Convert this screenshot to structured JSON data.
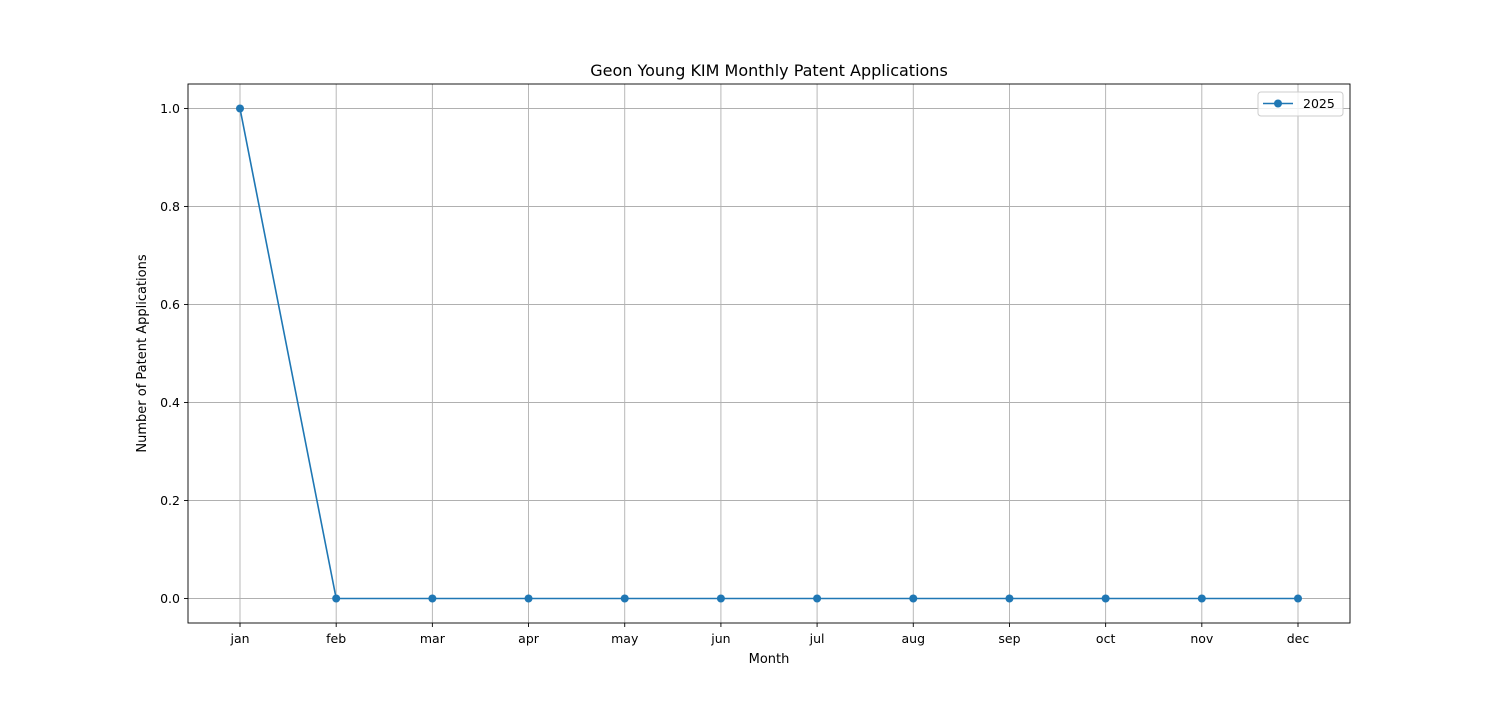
{
  "chart_data": {
    "type": "line",
    "title": "Geon Young KIM Monthly Patent Applications",
    "xlabel": "Month",
    "ylabel": "Number of Patent Applications",
    "categories": [
      "jan",
      "feb",
      "mar",
      "apr",
      "may",
      "jun",
      "jul",
      "aug",
      "sep",
      "oct",
      "nov",
      "dec"
    ],
    "series": [
      {
        "name": "2025",
        "color": "#1f77b4",
        "marker": "circle",
        "values": [
          1,
          0,
          0,
          0,
          0,
          0,
          0,
          0,
          0,
          0,
          0,
          0
        ]
      }
    ],
    "ylim": [
      -0.05,
      1.05
    ],
    "yticks": [
      0.0,
      0.2,
      0.4,
      0.6,
      0.8,
      1.0
    ],
    "ytick_labels": [
      "0.0",
      "0.2",
      "0.4",
      "0.6",
      "0.8",
      "1.0"
    ],
    "grid": true,
    "legend_position": "top-right"
  }
}
